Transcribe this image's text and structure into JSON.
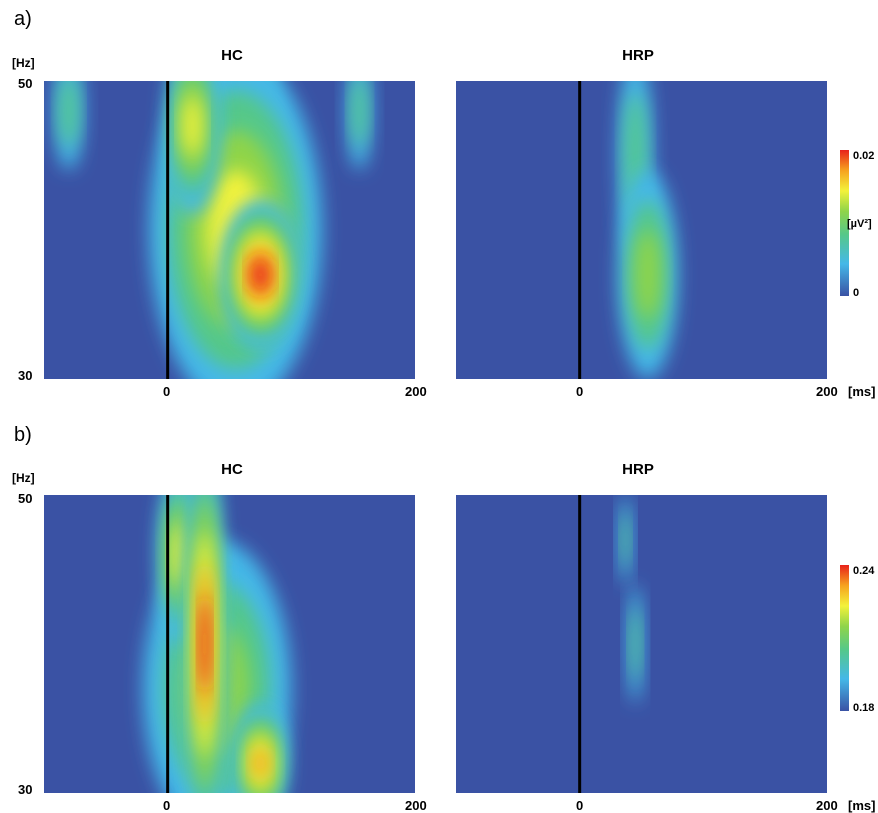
{
  "chart_data": [
    {
      "type": "heatmap",
      "panel": "a)",
      "title": "HC",
      "ylabel": "[Hz]",
      "xlabel": "",
      "x_ticks": [
        "0",
        "200"
      ],
      "y_ticks": [
        "50",
        "30"
      ],
      "xlim": [
        -100,
        200
      ],
      "ylim": [
        30,
        50
      ],
      "stimulus_line_x": 0,
      "colorscale": {
        "min": "0",
        "max": "0.02",
        "unit": "[µV²]"
      },
      "blobs": [
        {
          "t_center": 75,
          "f_center": 37,
          "t_width": 32,
          "f_height": 5,
          "level": 1.0
        },
        {
          "t_center": 55,
          "f_center": 40,
          "t_width": 70,
          "f_height": 12,
          "level": 0.6
        },
        {
          "t_center": 20,
          "f_center": 47,
          "t_width": 22,
          "f_height": 6,
          "level": 0.7
        },
        {
          "t_center": 70,
          "f_center": 48,
          "t_width": 18,
          "f_height": 4,
          "level": 0.5
        },
        {
          "t_center": -80,
          "f_center": 48,
          "t_width": 12,
          "f_height": 4,
          "level": 0.3
        },
        {
          "t_center": 155,
          "f_center": 48,
          "t_width": 10,
          "f_height": 4,
          "level": 0.28
        }
      ]
    },
    {
      "type": "heatmap",
      "panel": "a)",
      "title": "HRP",
      "xlabel": "[ms]",
      "x_ticks": [
        "0",
        "200"
      ],
      "xlim": [
        -100,
        200
      ],
      "ylim": [
        30,
        50
      ],
      "stimulus_line_x": 0,
      "colorscale": {
        "min": "0",
        "max": "0.02",
        "unit": "[µV²]"
      },
      "blobs": [
        {
          "t_center": 55,
          "f_center": 37,
          "t_width": 24,
          "f_height": 7,
          "level": 0.42
        },
        {
          "t_center": 45,
          "f_center": 45,
          "t_width": 14,
          "f_height": 7,
          "level": 0.38
        }
      ]
    },
    {
      "type": "heatmap",
      "panel": "b)",
      "title": "HC",
      "ylabel": "[Hz]",
      "xlabel": "",
      "x_ticks": [
        "0",
        "200"
      ],
      "y_ticks": [
        "50",
        "30"
      ],
      "xlim": [
        -100,
        200
      ],
      "ylim": [
        30,
        50
      ],
      "stimulus_line_x": 0,
      "colorscale": {
        "min": "0.18",
        "max": "0.24"
      },
      "blobs": [
        {
          "t_center": 30,
          "f_center": 40,
          "t_width": 16,
          "f_height": 14,
          "level": 1.0
        },
        {
          "t_center": 40,
          "f_center": 37,
          "t_width": 60,
          "f_height": 10,
          "level": 0.55
        },
        {
          "t_center": 75,
          "f_center": 32,
          "t_width": 22,
          "f_height": 4,
          "level": 0.75
        },
        {
          "t_center": 10,
          "f_center": 46,
          "t_width": 18,
          "f_height": 6,
          "level": 0.6
        }
      ]
    },
    {
      "type": "heatmap",
      "panel": "b)",
      "title": "HRP",
      "xlabel": "[ms]",
      "x_ticks": [
        "0",
        "200"
      ],
      "xlim": [
        -100,
        200
      ],
      "ylim": [
        30,
        50
      ],
      "stimulus_line_x": 0,
      "colorscale": {
        "min": "0.18",
        "max": "0.24"
      },
      "blobs": [
        {
          "t_center": 37,
          "f_center": 47,
          "t_width": 5,
          "f_height": 3,
          "level": 0.35
        },
        {
          "t_center": 45,
          "f_center": 40,
          "t_width": 6,
          "f_height": 4,
          "level": 0.28
        }
      ]
    }
  ],
  "labels": {
    "panel_a": "a)",
    "panel_b": "b)",
    "hz": "[Hz]",
    "ms": "[ms]",
    "title_hc": "HC",
    "title_hrp": "HRP",
    "tick_50": "50",
    "tick_30": "30",
    "tick_0": "0",
    "tick_200": "200",
    "cbar_a_max": "0.02",
    "cbar_a_min": "0",
    "cbar_a_unit": "[µV²]",
    "cbar_b_max": "0.24",
    "cbar_b_min": "0.18"
  },
  "colors": {
    "background": "#3a52a4",
    "scale": [
      "#3a52a4",
      "#45b8e8",
      "#55c88a",
      "#8fd44a",
      "#f3f23a",
      "#f6a21e",
      "#e8221b"
    ]
  }
}
